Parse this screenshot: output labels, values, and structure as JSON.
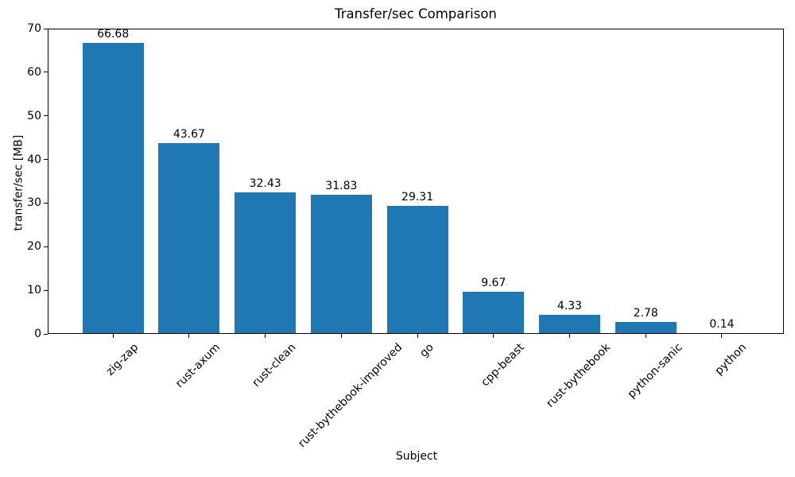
{
  "chart_data": {
    "type": "bar",
    "title": "Transfer/sec Comparison",
    "xlabel": "Subject",
    "ylabel": "transfer/sec [MB]",
    "categories": [
      "zig-zap",
      "rust-axum",
      "rust-clean",
      "rust-bythebook-improved",
      "go",
      "cpp-beast",
      "rust-bythebook",
      "python-sanic",
      "python"
    ],
    "values": [
      66.68,
      43.67,
      32.43,
      31.83,
      29.31,
      9.67,
      4.33,
      2.78,
      0.14
    ],
    "bar_labels": [
      "66.68",
      "43.67",
      "32.43",
      "31.83",
      "29.31",
      "9.67",
      "4.33",
      "2.78",
      "0.14"
    ],
    "ylim": [
      0,
      70
    ],
    "yticks": [
      0,
      10,
      20,
      30,
      40,
      50,
      60,
      70
    ],
    "xtick_rotation_deg": 45,
    "bar_color": "#1f77b4",
    "text_color": "#000000",
    "background_color": "#ffffff",
    "grid": false,
    "legend": null
  }
}
